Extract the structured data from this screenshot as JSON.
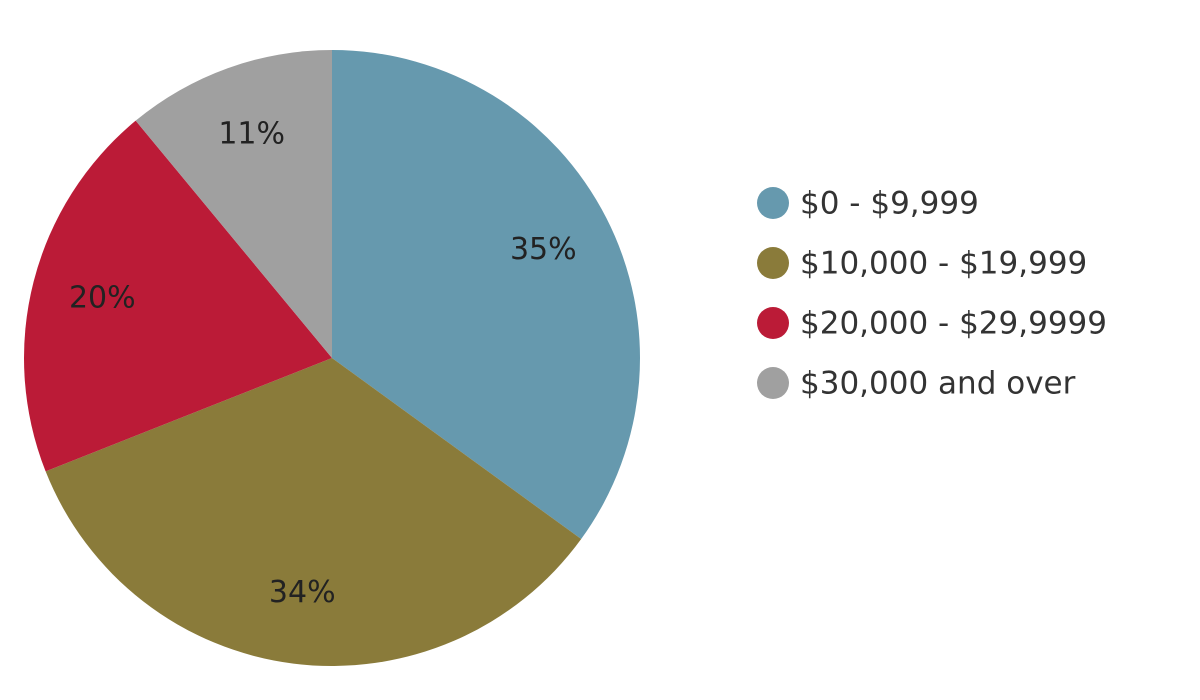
{
  "chart_data": {
    "type": "pie",
    "categories": [
      "$0 - $9,999",
      "$10,000 - $19,999",
      "$20,000 - $29,9999",
      "$30,000 and over"
    ],
    "values": [
      35,
      34,
      20,
      11
    ],
    "value_labels": [
      "35%",
      "34%",
      "20%",
      "11%"
    ],
    "colors": [
      "#6699ae",
      "#8a7b3a",
      "#bb1b37",
      "#a0a0a0"
    ],
    "legend": "right"
  }
}
